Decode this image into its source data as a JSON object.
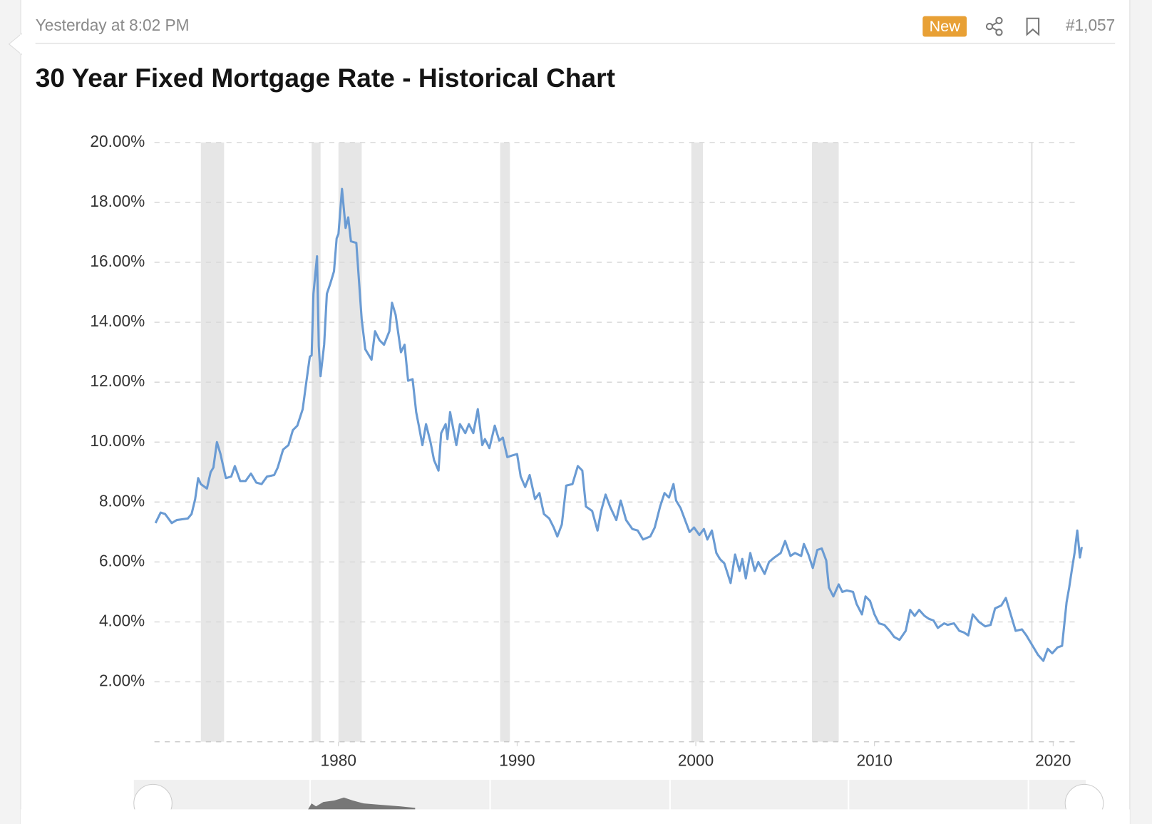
{
  "post": {
    "timestamp": "Yesterday at 8:02 PM",
    "badge": "New",
    "post_number": "#1,057"
  },
  "chart_data": {
    "type": "line",
    "title": "30 Year Fixed Mortgage Rate - Historical Chart",
    "color": "#6a9bd3",
    "grid": true,
    "xlim": [
      1969.7,
      2021.7
    ],
    "xticks": [
      1980,
      1990,
      2000,
      2010,
      2020
    ],
    "ylim": [
      0,
      20
    ],
    "yticks": [
      {
        "value": 2,
        "label": "2.00%"
      },
      {
        "value": 4,
        "label": "4.00%"
      },
      {
        "value": 6,
        "label": "6.00%"
      },
      {
        "value": 8,
        "label": "8.00%"
      },
      {
        "value": 10,
        "label": "10.00%"
      },
      {
        "value": 12,
        "label": "12.00%"
      },
      {
        "value": 14,
        "label": "14.00%"
      },
      {
        "value": 16,
        "label": "16.00%"
      },
      {
        "value": 18,
        "label": "18.00%"
      },
      {
        "value": 20,
        "label": "20.00%"
      }
    ],
    "shaded_ranges": [
      [
        1972.3,
        1973.6
      ],
      [
        1978.5,
        1979.0
      ],
      [
        1980.0,
        1981.3
      ],
      [
        1989.05,
        1989.6
      ],
      [
        1999.75,
        2000.4
      ],
      [
        2006.5,
        2008.0
      ],
      [
        2018.75,
        2018.85
      ]
    ],
    "x": [
      1969.76,
      1970.05,
      1970.3,
      1970.67,
      1970.95,
      1971.57,
      1971.78,
      1971.98,
      1972.15,
      1972.3,
      1972.64,
      1972.85,
      1973.0,
      1973.2,
      1973.4,
      1973.7,
      1974.0,
      1974.2,
      1974.5,
      1974.8,
      1975.1,
      1975.4,
      1975.7,
      1976.0,
      1976.4,
      1976.6,
      1976.9,
      1977.2,
      1977.45,
      1977.7,
      1978.0,
      1978.2,
      1978.4,
      1978.5,
      1978.6,
      1978.8,
      1978.9,
      1979.0,
      1979.2,
      1979.35,
      1979.55,
      1979.75,
      1979.9,
      1980.0,
      1980.2,
      1980.4,
      1980.55,
      1980.7,
      1981.0,
      1981.3,
      1981.5,
      1981.85,
      1982.05,
      1982.3,
      1982.55,
      1982.85,
      1983.0,
      1983.2,
      1983.5,
      1983.7,
      1983.9,
      1984.15,
      1984.35,
      1984.5,
      1984.7,
      1984.9,
      1985.15,
      1985.35,
      1985.6,
      1985.75,
      1986.0,
      1986.1,
      1986.25,
      1986.6,
      1986.8,
      1987.1,
      1987.3,
      1987.55,
      1987.8,
      1988.05,
      1988.2,
      1988.45,
      1988.75,
      1989.0,
      1989.2,
      1989.45,
      1989.7,
      1990.0,
      1990.2,
      1990.45,
      1990.7,
      1991.0,
      1991.25,
      1991.5,
      1991.8,
      1992.05,
      1992.25,
      1992.5,
      1992.75,
      1993.1,
      1993.4,
      1993.65,
      1993.85,
      1994.2,
      1994.5,
      1994.7,
      1994.95,
      1995.2,
      1995.55,
      1995.8,
      1996.1,
      1996.45,
      1996.75,
      1997.05,
      1997.45,
      1997.7,
      1998.0,
      1998.25,
      1998.5,
      1998.75,
      1998.9,
      1999.15,
      1999.4,
      1999.65,
      1999.9,
      2000.2,
      2000.45,
      2000.65,
      2000.9,
      2001.15,
      2001.35,
      2001.6,
      2001.95,
      2002.2,
      2002.45,
      2002.6,
      2002.8,
      2003.05,
      2003.3,
      2003.5,
      2003.85,
      2004.1,
      2004.4,
      2004.75,
      2005.0,
      2005.3,
      2005.55,
      2005.9,
      2006.05,
      2006.3,
      2006.55,
      2006.8,
      2007.05,
      2007.3,
      2007.45,
      2007.7,
      2008.0,
      2008.2,
      2008.45,
      2008.8,
      2009.0,
      2009.3,
      2009.5,
      2009.75,
      2010.0,
      2010.25,
      2010.55,
      2010.85,
      2011.1,
      2011.4,
      2011.75,
      2012.0,
      2012.25,
      2012.5,
      2012.8,
      2013.05,
      2013.3,
      2013.55,
      2013.9,
      2014.1,
      2014.45,
      2014.75,
      2015.0,
      2015.25,
      2015.5,
      2015.85,
      2016.2,
      2016.5,
      2016.75,
      2017.1,
      2017.35,
      2017.65,
      2017.9,
      2018.25,
      2018.5,
      2018.8,
      2019.15,
      2019.45,
      2019.7,
      2019.95,
      2020.25,
      2020.5,
      2020.75,
      2020.9,
      2021.05,
      2021.2,
      2021.35,
      2021.5,
      2021.6
    ],
    "values": [
      7.3,
      7.65,
      7.6,
      7.3,
      7.4,
      7.45,
      7.6,
      8.1,
      8.8,
      8.6,
      8.45,
      9.0,
      9.15,
      10.0,
      9.6,
      8.8,
      8.85,
      9.2,
      8.7,
      8.7,
      8.95,
      8.65,
      8.6,
      8.85,
      8.9,
      9.15,
      9.75,
      9.9,
      10.4,
      10.55,
      11.1,
      12.0,
      12.85,
      12.9,
      14.95,
      16.2,
      13.2,
      12.2,
      13.25,
      14.95,
      15.3,
      15.7,
      16.8,
      16.95,
      18.45,
      17.15,
      17.5,
      16.7,
      16.65,
      14.1,
      13.1,
      12.75,
      13.7,
      13.4,
      13.25,
      13.7,
      14.65,
      14.25,
      13.0,
      13.25,
      12.05,
      12.1,
      11.0,
      10.55,
      9.9,
      10.6,
      10.0,
      9.4,
      9.05,
      10.3,
      10.6,
      10.1,
      11.0,
      9.9,
      10.6,
      10.3,
      10.6,
      10.3,
      11.1,
      9.9,
      10.1,
      9.8,
      10.55,
      10.05,
      10.15,
      9.5,
      9.55,
      9.6,
      8.85,
      8.5,
      8.9,
      8.1,
      8.3,
      7.6,
      7.45,
      7.15,
      6.85,
      7.25,
      8.55,
      8.6,
      9.2,
      9.05,
      7.85,
      7.7,
      7.05,
      7.7,
      8.25,
      7.85,
      7.4,
      8.05,
      7.4,
      7.1,
      7.05,
      6.75,
      6.85,
      7.15,
      7.85,
      8.3,
      8.15,
      8.6,
      8.05,
      7.8,
      7.4,
      7.0,
      7.15,
      6.9,
      7.1,
      6.75,
      7.05,
      6.3,
      6.1,
      5.95,
      5.3,
      6.25,
      5.7,
      6.1,
      5.45,
      6.3,
      5.7,
      6.0,
      5.6,
      6.0,
      6.15,
      6.3,
      6.7,
      6.2,
      6.3,
      6.2,
      6.6,
      6.25,
      5.8,
      6.4,
      6.45,
      6.05,
      5.15,
      4.85,
      5.25,
      5.0,
      5.05,
      5.0,
      4.6,
      4.25,
      4.85,
      4.7,
      4.25,
      3.95,
      3.9,
      3.7,
      3.5,
      3.4,
      3.7,
      4.4,
      4.2,
      4.4,
      4.2,
      4.1,
      4.05,
      3.8,
      3.95,
      3.9,
      3.95,
      3.7,
      3.65,
      3.55,
      4.25,
      4.0,
      3.85,
      3.9,
      4.45,
      4.55,
      4.8,
      4.2,
      3.7,
      3.75,
      3.55,
      3.25,
      2.9,
      2.7,
      3.1,
      2.95,
      3.15,
      3.2,
      4.65,
      5.15,
      5.75,
      6.3,
      7.05,
      6.15,
      6.5
    ]
  }
}
